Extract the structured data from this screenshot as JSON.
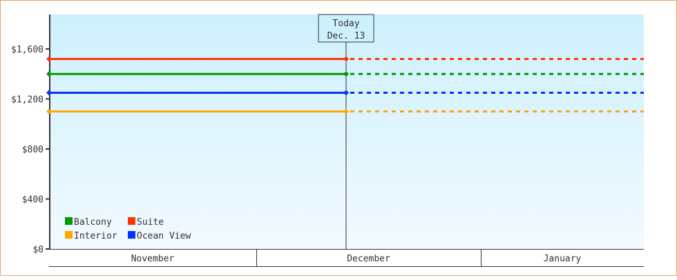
{
  "chart_data": {
    "type": "line",
    "ylim": [
      0,
      1900
    ],
    "y_ticks": [
      0,
      400,
      800,
      1200,
      1600
    ],
    "y_tick_labels": [
      "$0",
      "$400",
      "$800",
      "$1,200",
      "$1,600"
    ],
    "x_categories": [
      "November",
      "December",
      "January"
    ],
    "grid": false,
    "legend_position": "bottom-left",
    "today_marker": {
      "line1": "Today",
      "line2": "Dec. 13"
    },
    "series": [
      {
        "name": "Balcony",
        "color": "#009900",
        "value": 1400
      },
      {
        "name": "Suite",
        "color": "#ff3300",
        "value": 1520
      },
      {
        "name": "Interior",
        "color": "#ffa500",
        "value": 1100
      },
      {
        "name": "Ocean View",
        "color": "#0033ff",
        "value": 1250
      }
    ],
    "note_values": "Each series is flat from the start of November to today (solid), then projected (dotted) to the end of January"
  }
}
